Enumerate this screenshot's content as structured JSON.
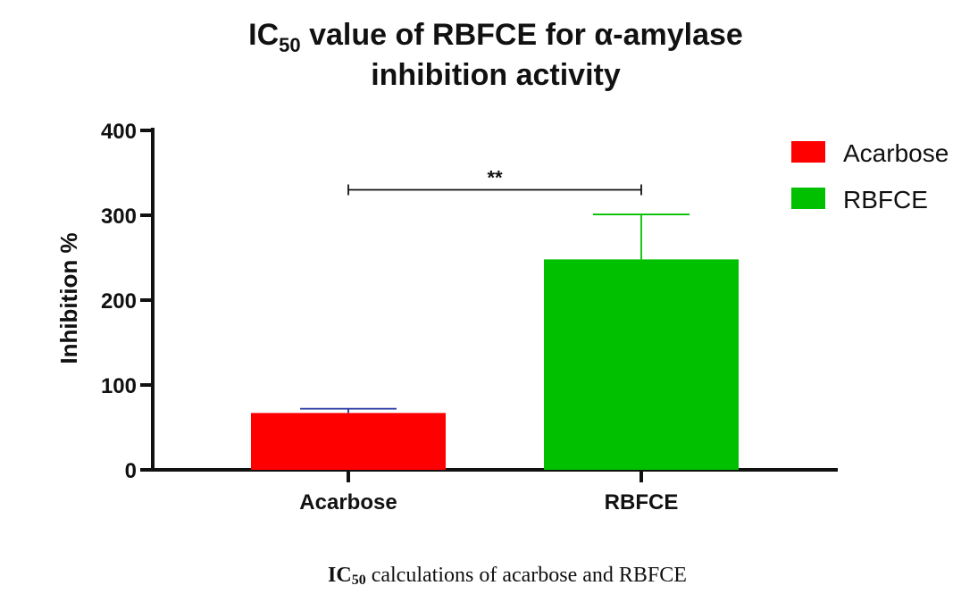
{
  "chart_data": {
    "type": "bar",
    "title": {
      "prefix": "IC",
      "subscript": "50",
      "line1_rest": " value of RBFCE for α-amylase",
      "line2": "inhibition activity"
    },
    "xlabel": "",
    "ylabel": "Inhibition %",
    "categories": [
      "Acarbose",
      "RBFCE"
    ],
    "values": [
      67,
      248
    ],
    "error_bars": [
      5,
      53
    ],
    "colors": [
      "#ff0000",
      "#00c000"
    ],
    "error_colors": [
      "#1f2f9f",
      "#00c000"
    ],
    "ylim": [
      0,
      400
    ],
    "yticks": [
      "0",
      "100",
      "200",
      "300",
      "400"
    ],
    "grid": false,
    "legend": {
      "position": "top-right",
      "entries": [
        {
          "label": "Acarbose",
          "color": "#ff0000"
        },
        {
          "label": "RBFCE",
          "color": "#00c000"
        }
      ]
    },
    "significance": {
      "label": "**",
      "between": [
        "Acarbose",
        "RBFCE"
      ],
      "y_value": 330
    }
  },
  "caption": {
    "bold_prefix": "IC",
    "bold_subscript": "50",
    "rest": " calculations of acarbose and RBFCE"
  }
}
